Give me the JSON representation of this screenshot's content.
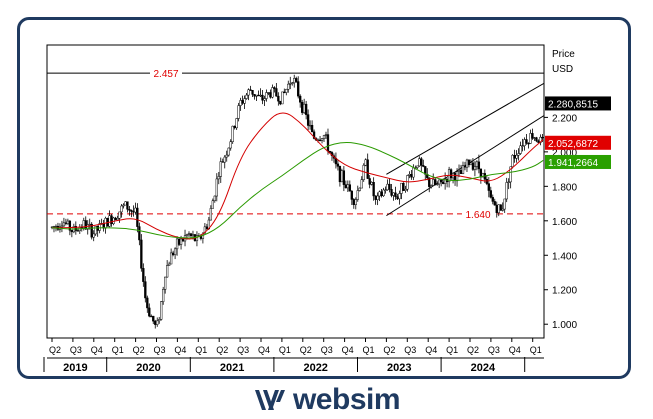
{
  "chart_data": {
    "type": "candlestick",
    "ylabel": "Price",
    "unit": "USD",
    "ylim": [
      0.92,
      2.62
    ],
    "y_ticks": [
      1.0,
      1.2,
      1.4,
      1.6,
      1.8,
      2.0,
      2.2
    ],
    "y_tick_labels": [
      "1.000",
      "1.200",
      "1.400",
      "1.600",
      "1.800",
      "2.000",
      "2.200"
    ],
    "x_quarter_labels": [
      "Q2",
      "Q3",
      "Q4",
      "Q1",
      "Q2",
      "Q3",
      "Q4",
      "Q1",
      "Q2",
      "Q3",
      "Q4",
      "Q1",
      "Q2",
      "Q3",
      "Q4",
      "Q1",
      "Q2",
      "Q3",
      "Q4",
      "Q1",
      "Q2",
      "Q3",
      "Q4",
      "Q1"
    ],
    "x_year_labels": [
      "2019",
      "2020",
      "2021",
      "2022",
      "2023",
      "2024"
    ],
    "horizontal_lines": [
      {
        "label": "2.457",
        "value": 2.457,
        "style": "solid",
        "color": "#000000",
        "label_color": "#e00000"
      },
      {
        "label": "1.640",
        "value": 1.64,
        "style": "dashed",
        "color": "#e00000",
        "label_color": "#e00000"
      }
    ],
    "price_tags": [
      {
        "label": "2.280,8515",
        "value": 2.2809,
        "bg": "#000000",
        "fg": "#ffffff"
      },
      {
        "label": "2.052,6872",
        "value": 2.0527,
        "bg": "#e00000",
        "fg": "#ffffff"
      },
      {
        "label": "1.941,2664",
        "value": 1.9413,
        "bg": "#2aa000",
        "fg": "#ffffff"
      }
    ],
    "series": [
      {
        "kind": "price",
        "color": "#000000",
        "x": [
          0,
          0.5,
          1,
          1.5,
          2,
          2.5,
          3,
          3.5,
          4,
          4.5,
          5,
          5.2,
          5.4,
          5.7,
          6,
          6.5,
          7,
          7.5,
          8,
          8.5,
          9,
          9.5,
          10,
          10.5,
          11,
          11.5,
          12,
          12.5,
          13,
          13.5,
          14,
          14.5,
          15,
          15.5,
          16,
          16.5,
          17,
          17.5,
          18,
          18.5,
          19,
          19.5,
          20,
          20.5,
          21,
          21.5,
          22,
          22.5,
          23,
          23.5
        ],
        "values": [
          1.56,
          1.6,
          1.54,
          1.58,
          1.53,
          1.58,
          1.63,
          1.69,
          1.64,
          1.12,
          0.97,
          1.1,
          1.3,
          1.4,
          1.46,
          1.52,
          1.48,
          1.6,
          1.9,
          2.05,
          2.28,
          2.36,
          2.3,
          2.35,
          2.31,
          2.44,
          2.26,
          2.08,
          2.1,
          1.93,
          1.82,
          1.72,
          1.93,
          1.7,
          1.8,
          1.74,
          1.84,
          1.95,
          1.82,
          1.8,
          1.87,
          1.86,
          1.95,
          1.9,
          1.72,
          1.65,
          1.95,
          2.06,
          2.1,
          2.05
        ]
      },
      {
        "kind": "moving-average",
        "color": "#d40000",
        "x": [
          0,
          1,
          2,
          3,
          4,
          5,
          6,
          7,
          8,
          9,
          10,
          11,
          12,
          13,
          14,
          15,
          16,
          17,
          18,
          19,
          20,
          21,
          22,
          23,
          23.5
        ],
        "values": [
          1.56,
          1.56,
          1.57,
          1.6,
          1.62,
          1.55,
          1.5,
          1.49,
          1.62,
          1.97,
          2.14,
          2.25,
          2.16,
          2.02,
          1.92,
          1.88,
          1.85,
          1.82,
          1.84,
          1.87,
          1.85,
          1.82,
          1.9,
          2.02,
          2.07
        ]
      },
      {
        "kind": "moving-average",
        "color": "#2a9a00",
        "x": [
          0,
          1,
          2,
          3,
          4,
          5,
          6,
          7,
          8,
          9,
          10,
          11,
          12,
          13,
          14,
          15,
          16,
          17,
          18,
          19,
          20,
          21,
          22,
          23,
          23.5
        ],
        "values": [
          1.56,
          1.55,
          1.56,
          1.56,
          1.55,
          1.52,
          1.5,
          1.5,
          1.56,
          1.68,
          1.78,
          1.86,
          1.95,
          2.03,
          2.06,
          2.04,
          1.99,
          1.93,
          1.86,
          1.83,
          1.84,
          1.87,
          1.88,
          1.91,
          1.95
        ]
      }
    ],
    "trend_channel": [
      {
        "x": [
          16.0,
          26.0
        ],
        "values": [
          1.87,
          2.57
        ]
      },
      {
        "x": [
          16.0,
          26.0
        ],
        "values": [
          1.63,
          2.4
        ]
      }
    ],
    "grid": false
  },
  "brand": {
    "name": "websim"
  }
}
